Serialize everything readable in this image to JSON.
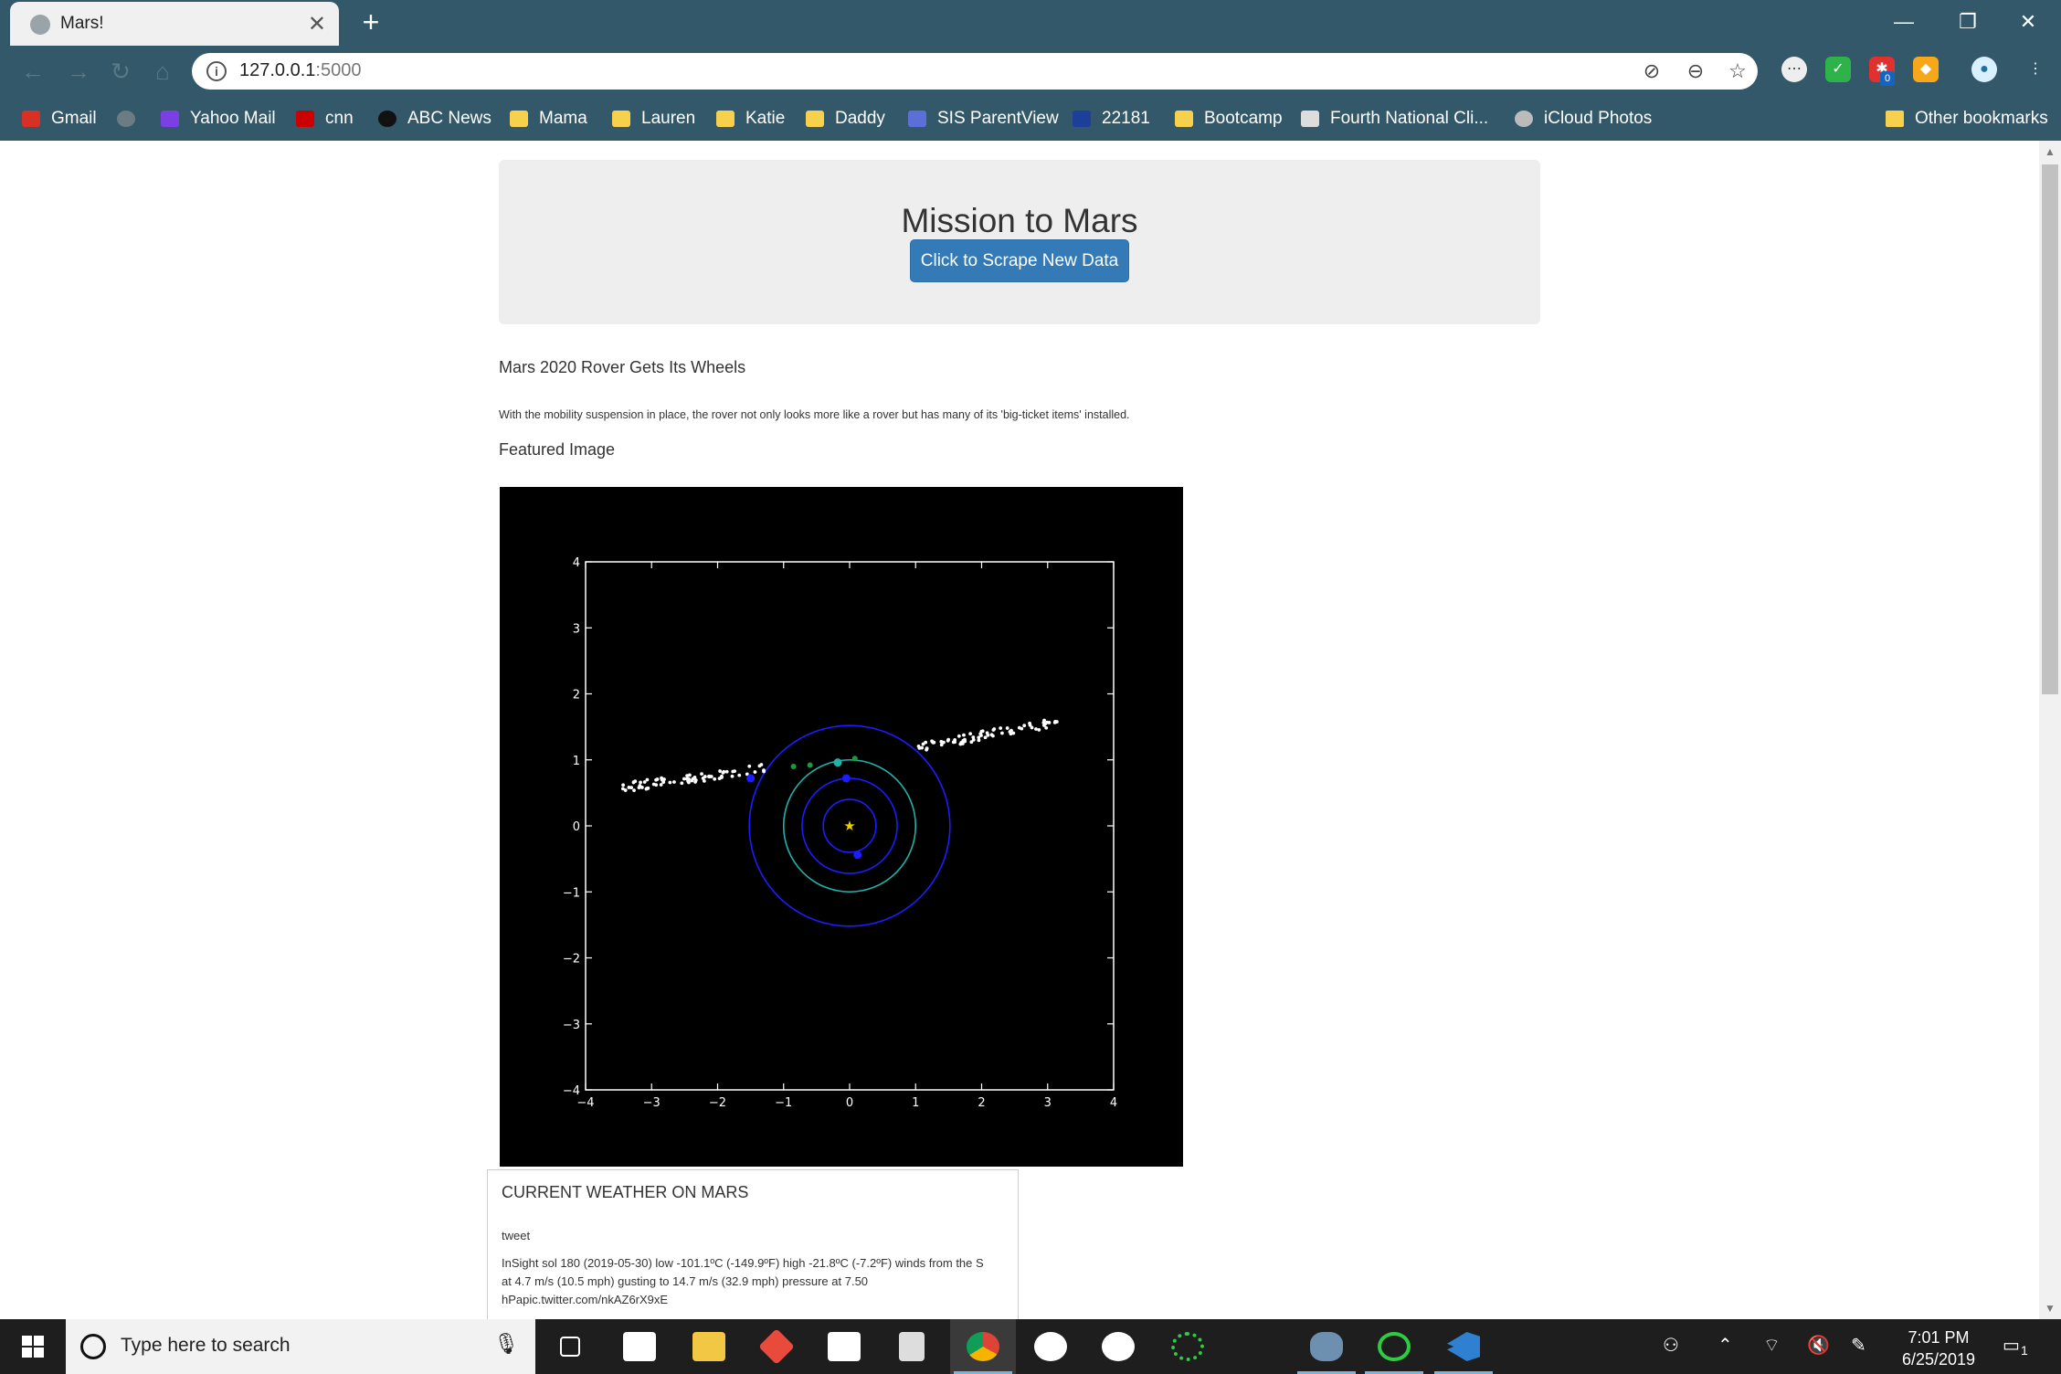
{
  "browser": {
    "tab_title": "Mars!",
    "url_host": "127.0.0.1",
    "url_port": ":5000",
    "bookmarks": [
      {
        "label": "Gmail",
        "icon": "gmail-icon",
        "color": "#d93025"
      },
      {
        "label": "",
        "icon": "globe-icon",
        "color": "#6b7c85"
      },
      {
        "label": "Yahoo Mail",
        "icon": "yahoo-mail-icon",
        "color": "#7b3fe4"
      },
      {
        "label": "cnn",
        "icon": "cnn-icon",
        "color": "#cc0000"
      },
      {
        "label": "ABC News",
        "icon": "abc-news-icon",
        "color": "#111111"
      },
      {
        "label": "Mama",
        "icon": "folder-icon",
        "color": "#f7d04c"
      },
      {
        "label": "Lauren",
        "icon": "folder-icon",
        "color": "#f7d04c"
      },
      {
        "label": "Katie",
        "icon": "folder-icon",
        "color": "#f7d04c"
      },
      {
        "label": "Daddy",
        "icon": "folder-icon",
        "color": "#f7d04c"
      },
      {
        "label": "SIS ParentView",
        "icon": "sis-icon",
        "color": "#5b6fd6"
      },
      {
        "label": "22181",
        "icon": "weather-channel-icon",
        "color": "#1d3f9a"
      },
      {
        "label": "Bootcamp",
        "icon": "folder-icon",
        "color": "#f7d04c"
      },
      {
        "label": "Fourth National Cli...",
        "icon": "page-icon",
        "color": "#dddddd"
      },
      {
        "label": "iCloud Photos",
        "icon": "apple-icon",
        "color": "#bbbbbb"
      }
    ],
    "other_bookmarks": "Other bookmarks",
    "extension_badge": "0"
  },
  "page": {
    "heading": "Mission to Mars",
    "scrape_button": "Click to Scrape New Data",
    "news_title": "Mars 2020 Rover Gets Its Wheels",
    "news_paragraph": "With the mobility suspension in place, the rover not only looks more like a rover but has many of its 'big-ticket items' installed.",
    "featured_label": "Featured Image",
    "weather": {
      "heading": "CURRENT WEATHER ON MARS",
      "label": "tweet",
      "text": "InSight sol 180 (2019-05-30) low -101.1ºC (-149.9ºF) high -21.8ºC (-7.2ºF) winds from the S at 4.7 m/s (10.5 mph) gusting to 14.7 m/s (32.9 mph) pressure at 7.50 hPapic.twitter.com/nkAZ6rX9xE"
    }
  },
  "chart_data": {
    "type": "scatter",
    "title": "",
    "xlabel": "",
    "ylabel": "",
    "xlim": [
      -4,
      4
    ],
    "ylim": [
      -4,
      4
    ],
    "xticks": [
      "−4",
      "−3",
      "−2",
      "−1",
      "0",
      "1",
      "2",
      "3",
      "4"
    ],
    "yticks": [
      "4",
      "3",
      "2",
      "1",
      "0",
      "−1",
      "−2",
      "−3",
      "−4"
    ],
    "background": "#000000",
    "grid": false,
    "sun": {
      "x": 0,
      "y": 0,
      "color": "#e8d100"
    },
    "orbits": [
      {
        "radius": 0.4,
        "color": "#1c1cff"
      },
      {
        "radius": 0.72,
        "color": "#1c1cff"
      },
      {
        "radius": 1.0,
        "color": "#20b2aa"
      },
      {
        "radius": 1.52,
        "color": "#1c1cff"
      }
    ],
    "planets": [
      {
        "x": 0.12,
        "y": -0.44,
        "color": "#1c1cff"
      },
      {
        "x": -0.05,
        "y": 0.72,
        "color": "#1c1cff"
      },
      {
        "x": -0.18,
        "y": 0.96,
        "color": "#20b2aa"
      },
      {
        "x": -1.5,
        "y": 0.72,
        "color": "#1c1cff"
      }
    ],
    "green_points": [
      {
        "x": -0.85,
        "y": 0.9
      },
      {
        "x": -0.6,
        "y": 0.92
      },
      {
        "x": 0.08,
        "y": 1.02
      }
    ],
    "asteroid_band_left": {
      "x_start": -3.45,
      "x_end": -1.2,
      "y_start": 0.58,
      "y_end": 0.88,
      "count": 70
    },
    "asteroid_band_right": {
      "x_start": 0.98,
      "x_end": 3.2,
      "y_start": 1.18,
      "y_end": 1.58,
      "count": 70
    }
  },
  "taskbar": {
    "search_placeholder": "Type here to search",
    "time": "7:01 PM",
    "date": "6/25/2019",
    "notification_count": "1"
  }
}
